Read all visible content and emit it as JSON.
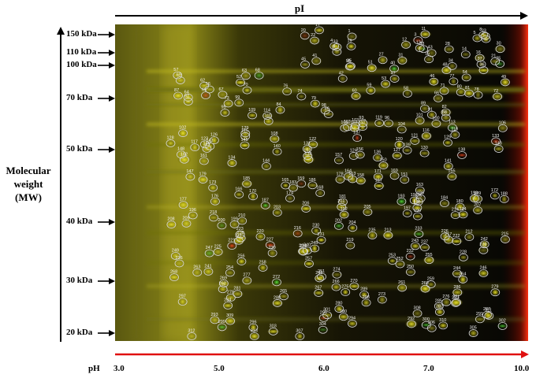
{
  "axes": {
    "x_title": "pI",
    "y_title_lines": [
      "Molecular",
      "weight",
      "(MW)"
    ],
    "ph_label": "pH",
    "ph_ticks": [
      "3.0",
      "5.0",
      "6.0",
      "7.0",
      "10.0"
    ],
    "mw_ticks": [
      "150 kDa",
      "110 kDa",
      "100 kDa",
      "70 kDa",
      "50 kDa",
      "40 kDa",
      "30 kDa",
      "20 kDa"
    ]
  },
  "colors": {
    "pi_arrow": "#000000",
    "ph_arrow": "#e01010",
    "mw_arrow": "#000000",
    "spot_circle": "#d8d8d8",
    "spot_yellow": "#e8e010",
    "spot_green": "#30d030",
    "spot_red": "#e03010"
  },
  "spot_labels": [
    "1",
    "2",
    "3",
    "4",
    "5",
    "8",
    "9",
    "11",
    "12",
    "13",
    "14",
    "15",
    "16",
    "17",
    "19",
    "20",
    "21",
    "22",
    "23",
    "25",
    "27",
    "28",
    "30",
    "31",
    "33",
    "34",
    "35",
    "36",
    "37",
    "38",
    "40",
    "41",
    "42",
    "43",
    "45",
    "46",
    "47",
    "48",
    "49",
    "51",
    "52",
    "53",
    "54",
    "55",
    "56",
    "57",
    "58",
    "59",
    "60",
    "62",
    "63",
    "64",
    "65",
    "66",
    "67",
    "68",
    "69",
    "70",
    "71",
    "72",
    "73",
    "74",
    "76",
    "77",
    "78",
    "79",
    "80",
    "81",
    "82",
    "84",
    "86",
    "87",
    "88",
    "89",
    "91",
    "93",
    "95",
    "96",
    "97",
    "98",
    "99",
    "100",
    "101",
    "102",
    "103",
    "104",
    "105",
    "106",
    "107",
    "108",
    "109",
    "110",
    "111",
    "112",
    "113",
    "114",
    "115",
    "116",
    "117",
    "118",
    "119",
    "120",
    "121",
    "122",
    "123",
    "124",
    "125",
    "126",
    "127",
    "128",
    "129",
    "130",
    "131",
    "132",
    "133",
    "134",
    "136",
    "137",
    "138",
    "139",
    "140",
    "141",
    "142",
    "143",
    "144",
    "145",
    "146",
    "147",
    "148",
    "150",
    "151",
    "152",
    "153",
    "155",
    "156",
    "157",
    "158",
    "159",
    "161",
    "162",
    "163",
    "164",
    "165",
    "166",
    "167",
    "168",
    "169",
    "170",
    "171",
    "172",
    "173",
    "174",
    "175",
    "176",
    "177",
    "178",
    "179",
    "180",
    "181",
    "182",
    "183",
    "184",
    "185",
    "186",
    "187",
    "188",
    "189",
    "190",
    "191",
    "192",
    "193",
    "194",
    "195",
    "196",
    "197",
    "198",
    "199",
    "200",
    "201",
    "202",
    "203",
    "204",
    "205",
    "206",
    "207",
    "208",
    "209",
    "210",
    "211",
    "212",
    "213",
    "214",
    "215",
    "216",
    "217",
    "218",
    "219",
    "220",
    "221",
    "222",
    "223",
    "224",
    "225",
    "226",
    "227",
    "228",
    "229",
    "230",
    "231",
    "232",
    "233",
    "234",
    "235",
    "236",
    "237",
    "238",
    "239",
    "240",
    "241",
    "242",
    "243",
    "244",
    "245",
    "246",
    "247",
    "248",
    "249",
    "250",
    "251",
    "252",
    "253",
    "254",
    "255",
    "256",
    "257",
    "258",
    "259",
    "260",
    "261",
    "262",
    "263",
    "264",
    "265",
    "266",
    "267",
    "268",
    "269",
    "270",
    "271",
    "272",
    "273",
    "274",
    "275",
    "276",
    "277",
    "278",
    "279",
    "280",
    "281",
    "282",
    "283",
    "284",
    "285",
    "286",
    "287",
    "288",
    "289",
    "290",
    "291",
    "292",
    "293",
    "294",
    "295",
    "296",
    "297",
    "298",
    "299",
    "300",
    "301",
    "302",
    "303",
    "304",
    "305",
    "306",
    "307",
    "308",
    "309",
    "310",
    "311",
    "312",
    "313"
  ]
}
